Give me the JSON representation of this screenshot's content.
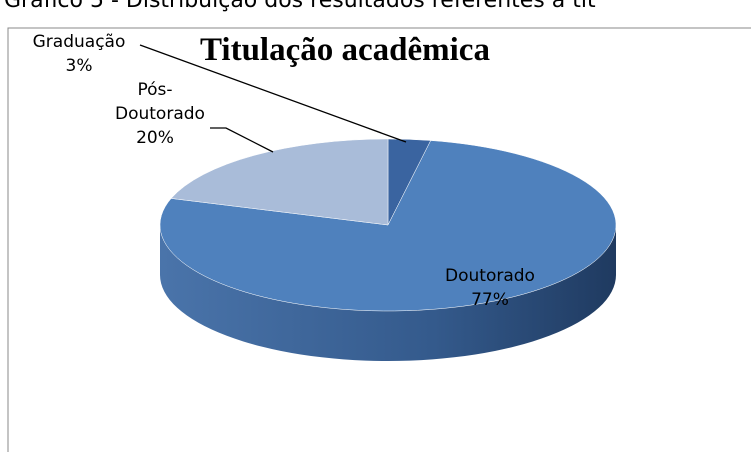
{
  "caption": "Gráfico 5 - Distribuição dos resultados referentes à tit",
  "chart_data": {
    "type": "pie",
    "title": "Titulação acadêmica",
    "categories": [
      "Graduação",
      "Doutorado",
      "Pós-Doutorado"
    ],
    "values": [
      3,
      77,
      20
    ],
    "value_labels": [
      "3%",
      "77%",
      "20%"
    ],
    "colors": [
      "#3a64a0",
      "#4f81bd",
      "#a9bcd9"
    ]
  }
}
